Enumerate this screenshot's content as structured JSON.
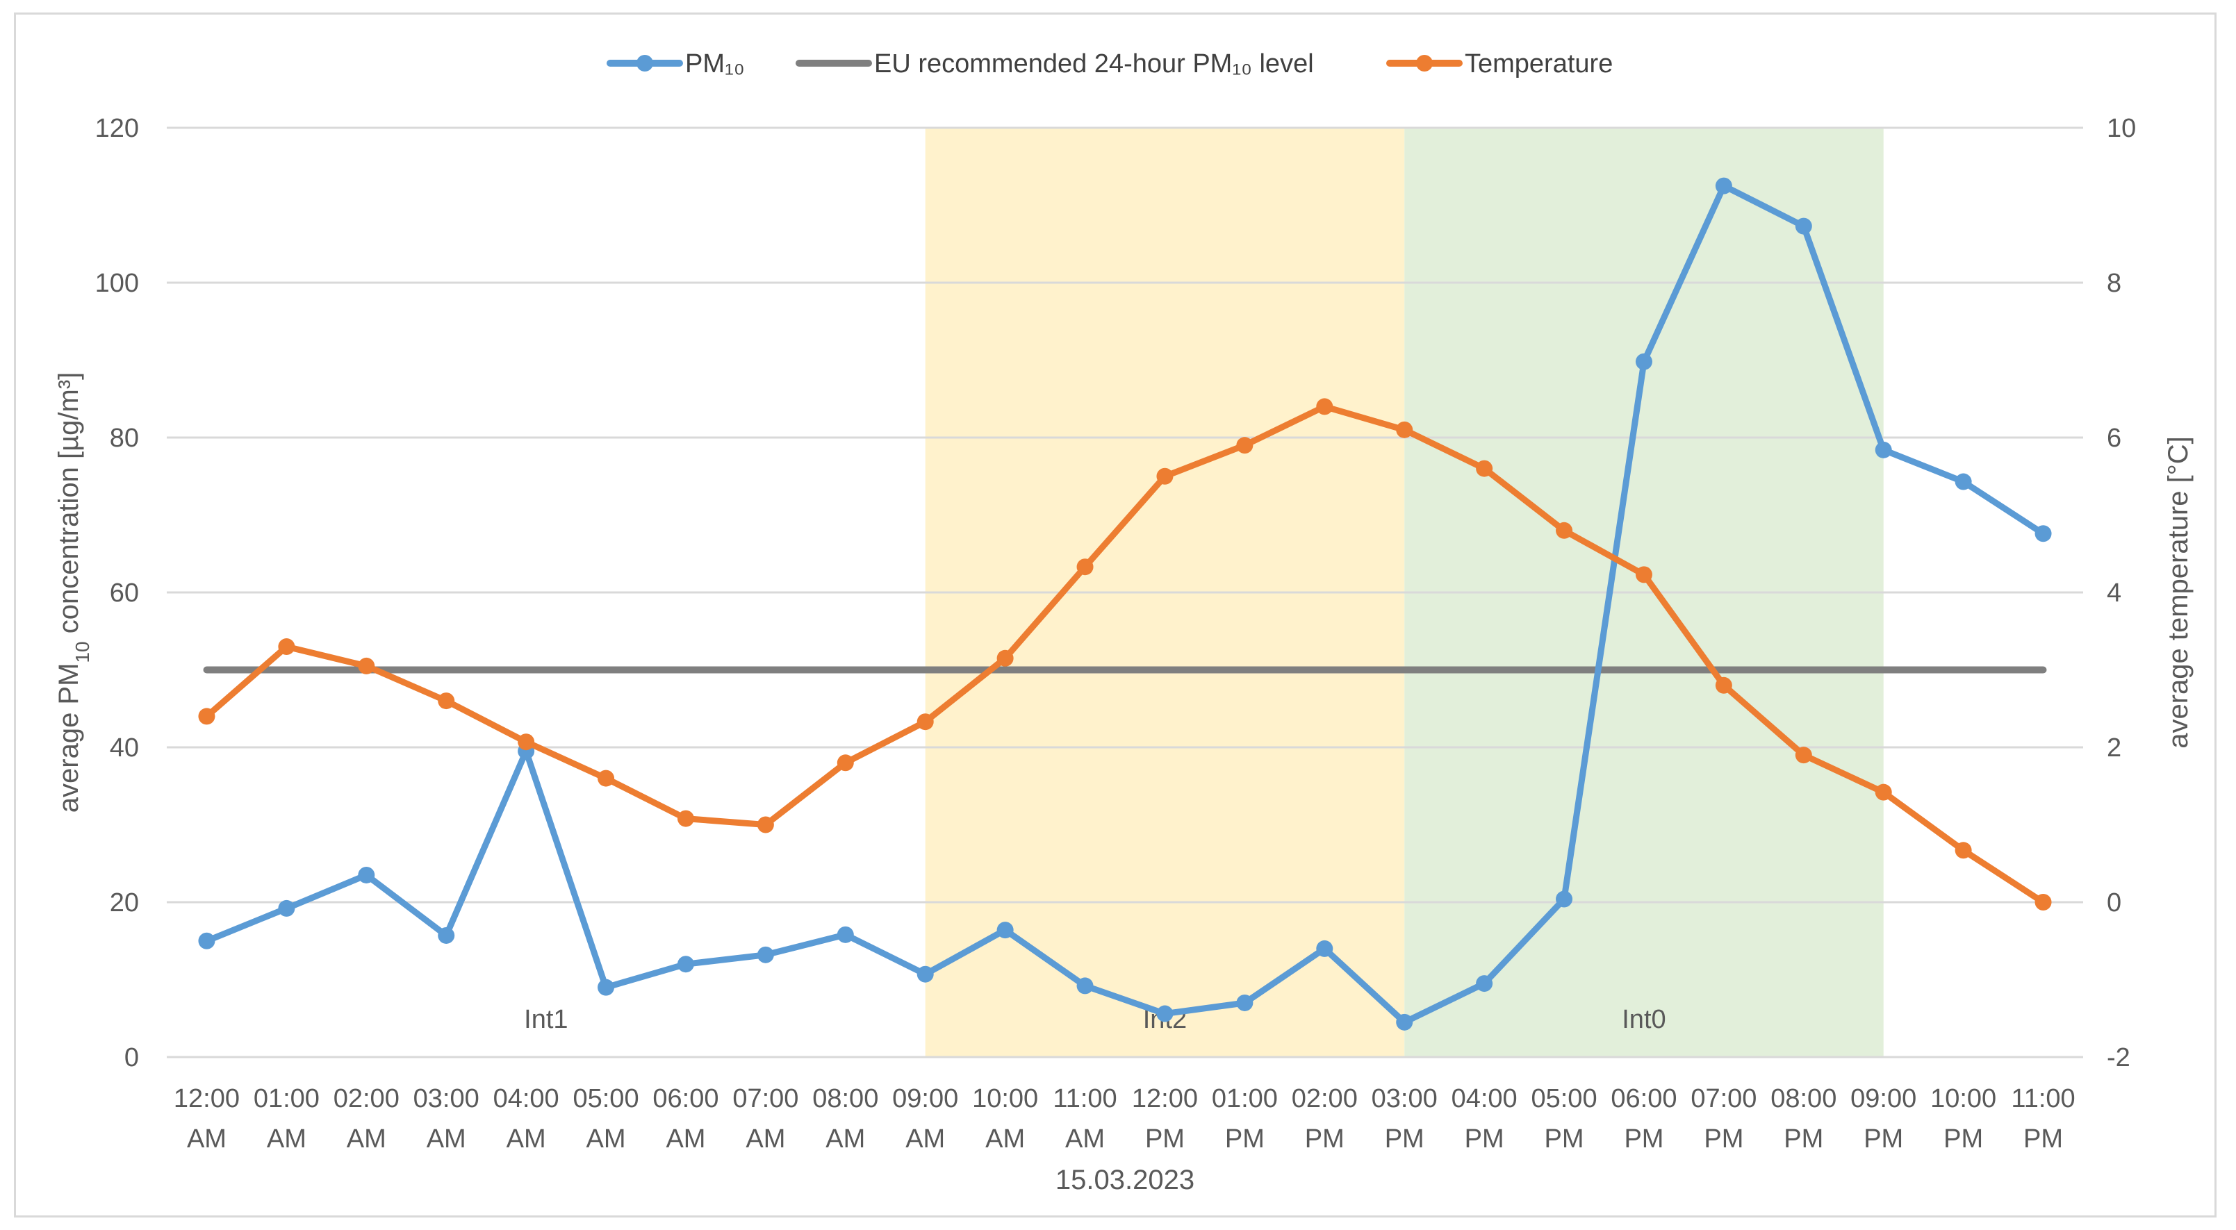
{
  "chart_data": {
    "type": "line",
    "categories": [
      [
        "12:00",
        "AM"
      ],
      [
        "01:00",
        "AM"
      ],
      [
        "02:00",
        "AM"
      ],
      [
        "03:00",
        "AM"
      ],
      [
        "04:00",
        "AM"
      ],
      [
        "05:00",
        "AM"
      ],
      [
        "06:00",
        "AM"
      ],
      [
        "07:00",
        "AM"
      ],
      [
        "08:00",
        "AM"
      ],
      [
        "09:00",
        "AM"
      ],
      [
        "10:00",
        "AM"
      ],
      [
        "11:00",
        "AM"
      ],
      [
        "12:00",
        "PM"
      ],
      [
        "01:00",
        "PM"
      ],
      [
        "02:00",
        "PM"
      ],
      [
        "03:00",
        "PM"
      ],
      [
        "04:00",
        "PM"
      ],
      [
        "05:00",
        "PM"
      ],
      [
        "06:00",
        "PM"
      ],
      [
        "07:00",
        "PM"
      ],
      [
        "08:00",
        "PM"
      ],
      [
        "09:00",
        "PM"
      ],
      [
        "10:00",
        "PM"
      ],
      [
        "11:00",
        "PM"
      ]
    ],
    "xlabel": "15.03.2023",
    "ylabel_left_parts": [
      "average PM",
      "10",
      " concentration [µg/m³]"
    ],
    "ylabel_right": "average temperature [°C]",
    "y_left": {
      "min": 0,
      "max": 120,
      "ticks": [
        0,
        20,
        40,
        60,
        80,
        100,
        120
      ]
    },
    "y_right": {
      "min": -2,
      "max": 10,
      "ticks": [
        -2,
        0,
        2,
        4,
        6,
        8,
        10
      ]
    },
    "grid": true,
    "legend_position": "top-center",
    "series": [
      {
        "name": "PM₁₀",
        "axis": "left",
        "color": "#5b9bd5",
        "values": [
          15,
          19.2,
          23.5,
          15.7,
          39.5,
          9,
          12,
          13.2,
          15.8,
          10.7,
          16.4,
          9.2,
          5.6,
          7,
          14,
          4.5,
          9.5,
          20.4,
          89.8,
          112.5,
          107.3,
          78.4,
          74.3,
          67.6
        ]
      },
      {
        "name": "EU recommended 24-hour PM₁₀ level",
        "axis": "left",
        "color": "#7f7f7f",
        "values": [
          50,
          50,
          50,
          50,
          50,
          50,
          50,
          50,
          50,
          50,
          50,
          50,
          50,
          50,
          50,
          50,
          50,
          50,
          50,
          50,
          50,
          50,
          50,
          50
        ]
      },
      {
        "name": "Temperature",
        "axis": "right",
        "color": "#ed7d31",
        "values": [
          2.4,
          3.3,
          3.05,
          2.6,
          2.07,
          1.6,
          1.08,
          1.0,
          1.8,
          2.33,
          3.15,
          4.33,
          5.5,
          5.9,
          6.4,
          6.1,
          5.6,
          4.8,
          4.23,
          2.8,
          1.9,
          1.42,
          0.67,
          0
        ]
      }
    ],
    "bands": [
      {
        "label": "Int1",
        "from_index": -0.5,
        "to_index": 9,
        "color": "none"
      },
      {
        "label": "Int2",
        "from_index": 9,
        "to_index": 15,
        "color": "#fff2cc"
      },
      {
        "label": "Int0",
        "from_index": 15,
        "to_index": 21,
        "color": "#e2efda"
      }
    ]
  }
}
